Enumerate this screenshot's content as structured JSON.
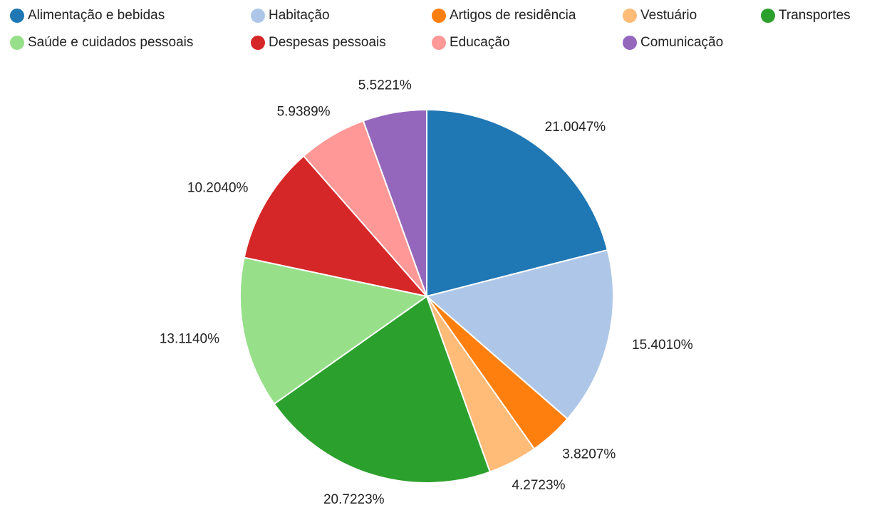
{
  "chart_data": {
    "type": "pie",
    "categories": [
      "Alimentação e bebidas",
      "Habitação",
      "Artigos de residência",
      "Vestuário",
      "Transportes",
      "Saúde e cuidados pessoais",
      "Despesas pessoais",
      "Educação",
      "Comunicação"
    ],
    "values": [
      21.0047,
      15.401,
      3.8207,
      4.2723,
      20.7223,
      13.114,
      10.204,
      5.9389,
      5.5221
    ],
    "value_labels": [
      "21.0047%",
      "15.4010%",
      "3.8207%",
      "4.2723%",
      "20.7223%",
      "13.1140%",
      "10.2040%",
      "5.9389%",
      "5.5221%"
    ],
    "colors": [
      "#1f77b4",
      "#aec7e8",
      "#ff7f0e",
      "#ffbb78",
      "#2ca02c",
      "#98df8a",
      "#d62728",
      "#ff9896",
      "#9467bd"
    ],
    "legend": "top"
  }
}
